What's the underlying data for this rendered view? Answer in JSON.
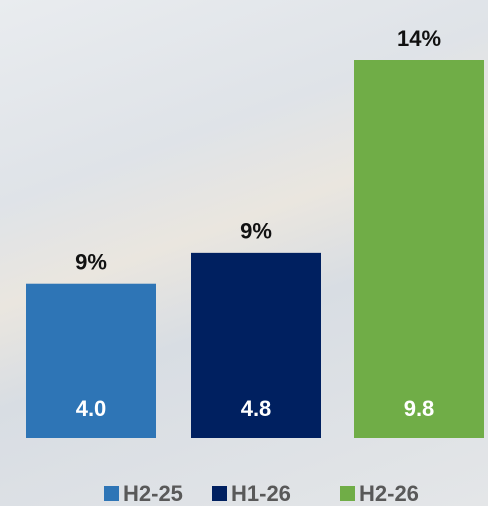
{
  "chart_data": {
    "type": "bar",
    "series": [
      {
        "name": "H2-25",
        "color": "#2e75b6",
        "values": [
          4.0
        ],
        "value_labels": [
          "4.0"
        ],
        "annotation": "9%"
      },
      {
        "name": "H1-26",
        "color": "#002060",
        "values": [
          4.8
        ],
        "value_labels": [
          "4.8"
        ],
        "annotation": "9%"
      },
      {
        "name": "H2-26",
        "color": "#70ad47",
        "values": [
          9.8
        ],
        "value_labels": [
          "9.8"
        ],
        "annotation": "14%"
      }
    ],
    "ylim": [
      0,
      9.8
    ]
  }
}
